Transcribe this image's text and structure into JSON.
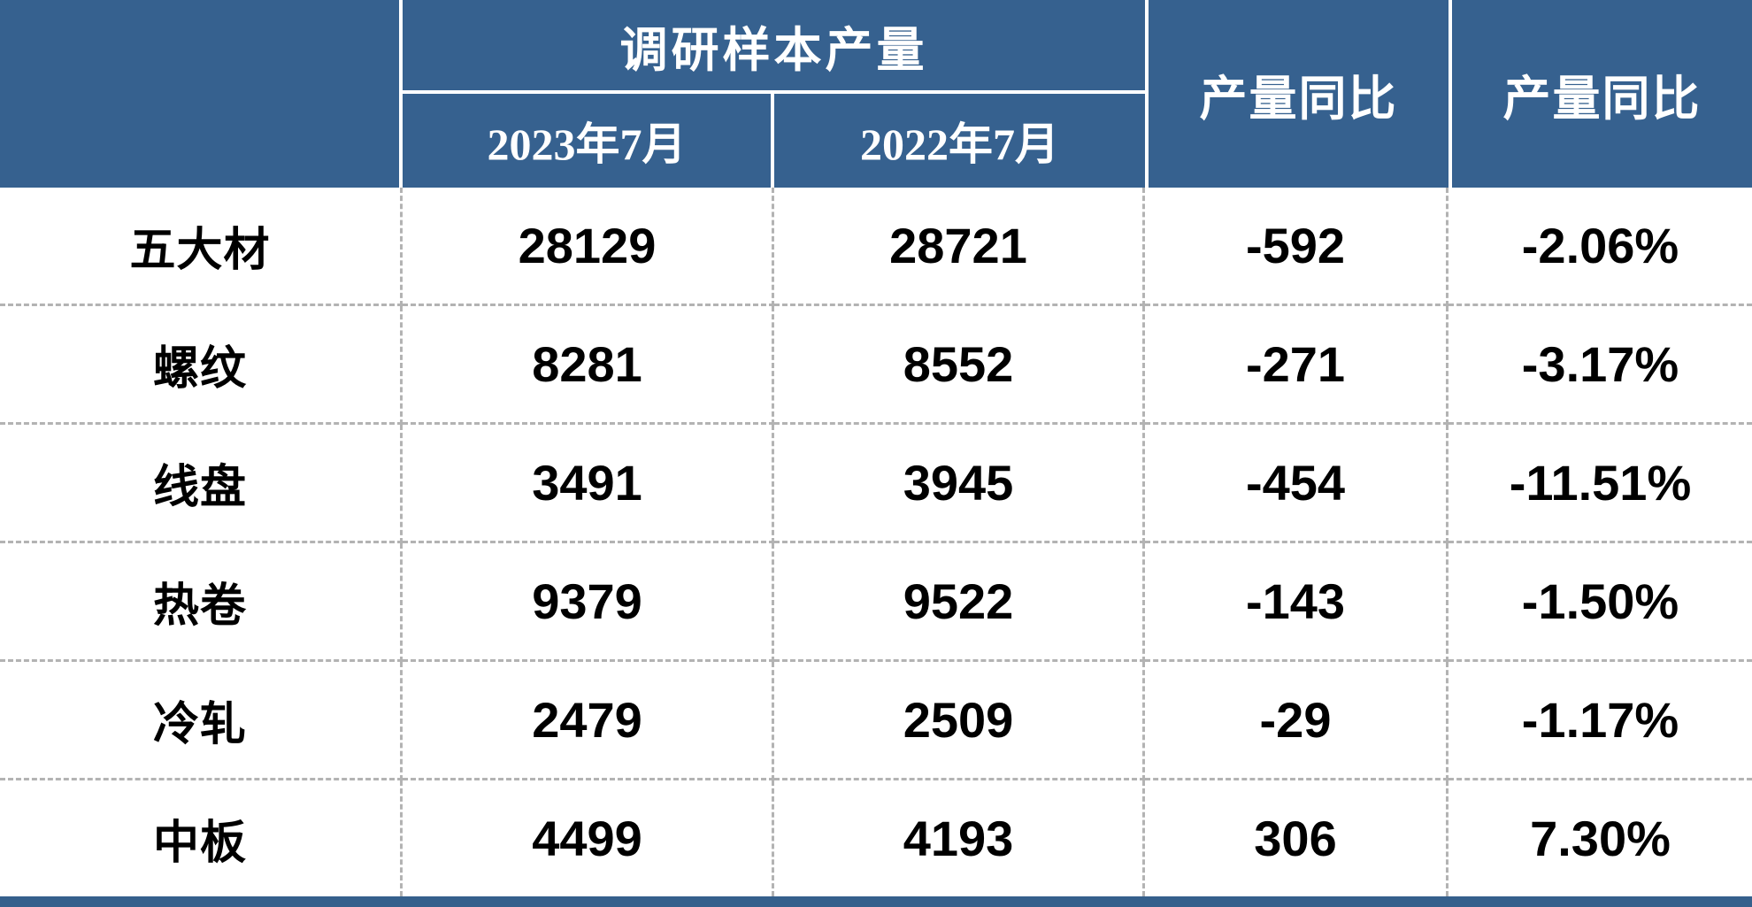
{
  "colors": {
    "header_blue": "#36618F",
    "footer_blue": "#35608C",
    "divider_white": "#ffffff",
    "dashed_gray": "#b3b3b3",
    "header_text": "#ffffff",
    "body_text": "#000000"
  },
  "table": {
    "corner_label": "",
    "group_header": "调研样本产量",
    "col_2023": "2023年7月",
    "col_2022": "2022年7月",
    "yoy_abs_header": "产量同比",
    "yoy_pct_header": "产量同比",
    "rows": [
      {
        "label": "五大材",
        "v2023": "28129",
        "v2022": "28721",
        "diff": "-592",
        "pct": "-2.06%"
      },
      {
        "label": "螺纹",
        "v2023": "8281",
        "v2022": "8552",
        "diff": "-271",
        "pct": "-3.17%"
      },
      {
        "label": "线盘",
        "v2023": "3491",
        "v2022": "3945",
        "diff": "-454",
        "pct": "-11.51%"
      },
      {
        "label": "热卷",
        "v2023": "9379",
        "v2022": "9522",
        "diff": "-143",
        "pct": "-1.50%"
      },
      {
        "label": "冷轧",
        "v2023": "2479",
        "v2022": "2509",
        "diff": "-29",
        "pct": "-1.17%"
      },
      {
        "label": "中板",
        "v2023": "4499",
        "v2022": "4193",
        "diff": "306",
        "pct": "7.30%"
      }
    ]
  },
  "chart_data": {
    "type": "table",
    "title": "",
    "column_group": {
      "label": "调研样本产量",
      "spans": [
        "2023年7月",
        "2022年7月"
      ]
    },
    "columns": [
      "",
      "2023年7月",
      "2022年7月",
      "产量同比",
      "产量同比"
    ],
    "rows": [
      [
        "五大材",
        28129,
        28721,
        -592,
        "-2.06%"
      ],
      [
        "螺纹",
        8281,
        8552,
        -271,
        "-3.17%"
      ],
      [
        "线盘",
        3491,
        3945,
        -454,
        "-11.51%"
      ],
      [
        "热卷",
        9379,
        9522,
        -143,
        "-1.50%"
      ],
      [
        "冷轧",
        2479,
        2509,
        -29,
        "-1.17%"
      ],
      [
        "中板",
        4499,
        4193,
        306,
        "7.30%"
      ]
    ]
  }
}
